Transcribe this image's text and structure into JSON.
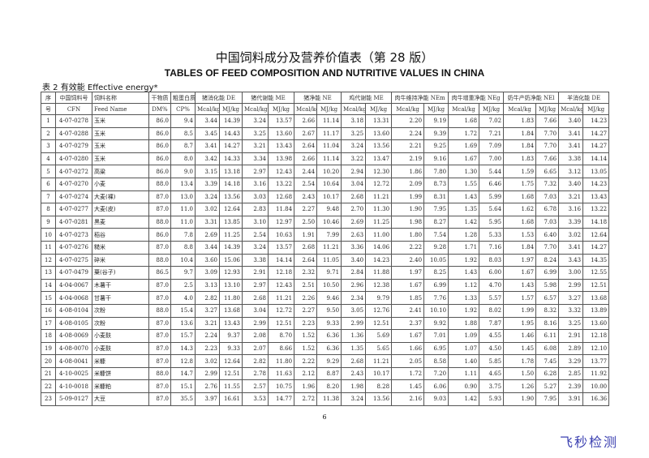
{
  "title": "中国饲料成分及营养价值表（第 28 版）",
  "subtitle": "TABLES OF FEED COMPOSITION AND NUTRITIVE VALUES IN CHINA",
  "caption": "表 2 有效能  Effective energy*",
  "header": {
    "row1": [
      "序",
      "中国饲料号",
      "饲料名称",
      "干物质",
      "粗蛋白质",
      "猪消化能 DE",
      "猪代谢能 ME",
      "猪净能 NE",
      "鸡代谢能 ME",
      "肉牛维持净能 NEm",
      "肉牛增重净能 NEg",
      "奶牛产奶净能 NEl",
      "羊消化能 DE"
    ],
    "row2": [
      "号",
      "CFN",
      "Feed Name",
      "DM%",
      "CP%",
      "Mcal/kg",
      "MJ/kg",
      "Mcal/kg",
      "MJ/kg",
      "Mcal/kg",
      "MJ/kg",
      "Mcal/kg",
      "MJ/kg",
      "Mcal/kg",
      "MJ/kg",
      "Mcal/kg",
      "MJ/kg",
      "Mcal/kg",
      "MJ/kg",
      "Mcal/kg",
      "MJ/kg"
    ]
  },
  "rows": [
    [
      "1",
      "4-07-0278",
      "玉米",
      "86.0",
      "9.4",
      "3.44",
      "14.39",
      "3.24",
      "13.57",
      "2.66",
      "11.14",
      "3.18",
      "13.31",
      "2.20",
      "9.19",
      "1.68",
      "7.02",
      "1.83",
      "7.66",
      "3.40",
      "14.23"
    ],
    [
      "2",
      "4-07-0288",
      "玉米",
      "86.0",
      "8.5",
      "3.45",
      "14.43",
      "3.25",
      "13.60",
      "2.67",
      "11.17",
      "3.25",
      "13.60",
      "2.24",
      "9.39",
      "1.72",
      "7.21",
      "1.84",
      "7.70",
      "3.41",
      "14.27"
    ],
    [
      "3",
      "4-07-0279",
      "玉米",
      "86.0",
      "8.7",
      "3.41",
      "14.27",
      "3.21",
      "13.43",
      "2.64",
      "11.04",
      "3.24",
      "13.56",
      "2.21",
      "9.25",
      "1.69",
      "7.09",
      "1.84",
      "7.70",
      "3.41",
      "14.27"
    ],
    [
      "4",
      "4-07-0280",
      "玉米",
      "86.0",
      "8.0",
      "3.42",
      "14.33",
      "3.34",
      "13.98",
      "2.66",
      "11.14",
      "3.22",
      "13.47",
      "2.19",
      "9.16",
      "1.67",
      "7.00",
      "1.83",
      "7.66",
      "3.38",
      "14.14"
    ],
    [
      "5",
      "4-07-0272",
      "高粱",
      "86.0",
      "9.0",
      "3.15",
      "13.18",
      "2.97",
      "12.43",
      "2.44",
      "10.20",
      "2.94",
      "12.30",
      "1.86",
      "7.80",
      "1.30",
      "5.44",
      "1.59",
      "6.65",
      "3.12",
      "13.05"
    ],
    [
      "6",
      "4-07-0270",
      "小麦",
      "88.0",
      "13.4",
      "3.39",
      "14.18",
      "3.16",
      "13.22",
      "2.54",
      "10.64",
      "3.04",
      "12.72",
      "2.09",
      "8.73",
      "1.55",
      "6.46",
      "1.75",
      "7.32",
      "3.40",
      "14.23"
    ],
    [
      "7",
      "4-07-0274",
      "大麦(裸)",
      "87.0",
      "13.0",
      "3.24",
      "13.56",
      "3.03",
      "12.68",
      "2.43",
      "10.17",
      "2.68",
      "11.21",
      "1.99",
      "8.31",
      "1.43",
      "5.99",
      "1.68",
      "7.03",
      "3.21",
      "13.43"
    ],
    [
      "8",
      "4-07-0277",
      "大麦(皮)",
      "87.0",
      "11.0",
      "3.02",
      "12.64",
      "2.83",
      "11.84",
      "2.27",
      "9.48",
      "2.70",
      "11.30",
      "1.90",
      "7.95",
      "1.35",
      "5.64",
      "1.62",
      "6.78",
      "3.16",
      "13.22"
    ],
    [
      "9",
      "4-07-0281",
      "黑麦",
      "88.0",
      "11.0",
      "3.31",
      "13.85",
      "3.10",
      "12.97",
      "2.50",
      "10.46",
      "2.69",
      "11.25",
      "1.98",
      "8.27",
      "1.42",
      "5.95",
      "1.68",
      "7.03",
      "3.39",
      "14.18"
    ],
    [
      "10",
      "4-07-0273",
      "稻谷",
      "86.0",
      "7.8",
      "2.69",
      "11.25",
      "2.54",
      "10.63",
      "1.91",
      "7.99",
      "2.63",
      "11.00",
      "1.80",
      "7.54",
      "1.28",
      "5.33",
      "1.53",
      "6.40",
      "3.02",
      "12.64"
    ],
    [
      "11",
      "4-07-0276",
      "糙米",
      "87.0",
      "8.8",
      "3.44",
      "14.39",
      "3.24",
      "13.57",
      "2.68",
      "11.21",
      "3.36",
      "14.06",
      "2.22",
      "9.28",
      "1.71",
      "7.16",
      "1.84",
      "7.70",
      "3.41",
      "14.27"
    ],
    [
      "12",
      "4-07-0275",
      "碎米",
      "88.0",
      "10.4",
      "3.60",
      "15.06",
      "3.38",
      "14.14",
      "2.64",
      "11.05",
      "3.40",
      "14.23",
      "2.40",
      "10.05",
      "1.92",
      "8.03",
      "1.97",
      "8.24",
      "3.43",
      "14.35"
    ],
    [
      "13",
      "4-07-0479",
      "粟(谷子)",
      "86.5",
      "9.7",
      "3.09",
      "12.93",
      "2.91",
      "12.18",
      "2.32",
      "9.71",
      "2.84",
      "11.88",
      "1.97",
      "8.25",
      "1.43",
      "6.00",
      "1.67",
      "6.99",
      "3.00",
      "12.55"
    ],
    [
      "14",
      "4-04-0067",
      "木薯干",
      "87.0",
      "2.5",
      "3.13",
      "13.10",
      "2.97",
      "12.43",
      "2.51",
      "10.50",
      "2.96",
      "12.38",
      "1.67",
      "6.99",
      "1.12",
      "4.70",
      "1.43",
      "5.98",
      "2.99",
      "12.51"
    ],
    [
      "15",
      "4-04-0068",
      "甘薯干",
      "87.0",
      "4.0",
      "2.82",
      "11.80",
      "2.68",
      "11.21",
      "2.26",
      "9.46",
      "2.34",
      "9.79",
      "1.85",
      "7.76",
      "1.33",
      "5.57",
      "1.57",
      "6.57",
      "3.27",
      "13.68"
    ],
    [
      "16",
      "4-08-0104",
      "次粉",
      "88.0",
      "15.4",
      "3.27",
      "13.68",
      "3.04",
      "12.72",
      "2.27",
      "9.50",
      "3.05",
      "12.76",
      "2.41",
      "10.10",
      "1.92",
      "8.02",
      "1.99",
      "8.32",
      "3.32",
      "13.89"
    ],
    [
      "17",
      "4-08-0105",
      "次粉",
      "87.0",
      "13.6",
      "3.21",
      "13.43",
      "2.99",
      "12.51",
      "2.23",
      "9.33",
      "2.99",
      "12.51",
      "2.37",
      "9.92",
      "1.88",
      "7.87",
      "1.95",
      "8.16",
      "3.25",
      "13.60"
    ],
    [
      "18",
      "4-08-0069",
      "小麦麸",
      "87.0",
      "15.7",
      "2.24",
      "9.37",
      "2.08",
      "8.70",
      "1.52",
      "6.36",
      "1.36",
      "5.69",
      "1.67",
      "7.01",
      "1.09",
      "4.55",
      "1.46",
      "6.11",
      "2.91",
      "12.18"
    ],
    [
      "19",
      "4-08-0070",
      "小麦麸",
      "87.0",
      "14.3",
      "2.23",
      "9.33",
      "2.07",
      "8.66",
      "1.52",
      "6.36",
      "1.35",
      "5.65",
      "1.66",
      "6.95",
      "1.07",
      "4.50",
      "1.45",
      "6.08",
      "2.89",
      "12.10"
    ],
    [
      "20",
      "4-08-0041",
      "米糠",
      "87.0",
      "12.8",
      "3.02",
      "12.64",
      "2.82",
      "11.80",
      "2.22",
      "9.29",
      "2.68",
      "11.21",
      "2.05",
      "8.58",
      "1.40",
      "5.85",
      "1.78",
      "7.45",
      "3.29",
      "13.77"
    ],
    [
      "21",
      "4-10-0025",
      "米糠饼",
      "88.0",
      "14.7",
      "2.99",
      "12.51",
      "2.78",
      "11.63",
      "2.12",
      "8.87",
      "2.43",
      "10.17",
      "1.72",
      "7.20",
      "1.11",
      "4.65",
      "1.50",
      "6.28",
      "2.85",
      "11.92"
    ],
    [
      "22",
      "4-10-0018",
      "米糠粕",
      "87.0",
      "15.1",
      "2.76",
      "11.55",
      "2.57",
      "10.75",
      "1.96",
      "8.20",
      "1.98",
      "8.28",
      "1.45",
      "6.06",
      "0.90",
      "3.75",
      "1.26",
      "5.27",
      "2.39",
      "10.00"
    ],
    [
      "23",
      "5-09-0127",
      "大豆",
      "87.0",
      "35.5",
      "3.97",
      "16.61",
      "3.53",
      "14.77",
      "2.72",
      "11.38",
      "3.24",
      "13.56",
      "2.16",
      "9.03",
      "1.42",
      "5.93",
      "1.90",
      "7.95",
      "3.91",
      "16.36"
    ]
  ],
  "page_number": "6",
  "watermark": "飞秒检测"
}
